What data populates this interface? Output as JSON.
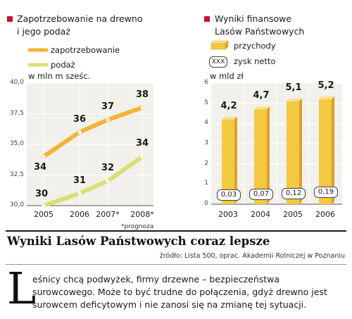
{
  "left_chart": {
    "title_line1": "Zapotrzebowanie na drewno",
    "title_line2": "i jego podaż",
    "legend": [
      {
        "label": "zapotrzebowanie",
        "color": "#f5b335"
      },
      {
        "label": "podaż",
        "color": "#d9df74"
      }
    ],
    "unit": "w mln m sześc.",
    "footnote": "*prognoza"
  },
  "right_chart": {
    "title_line1": "Wyniki finansowe",
    "title_line2": "Lasów Państwowych",
    "legend_revenue": "przychody",
    "legend_profit": "zysk netto",
    "legend_profit_box": "XXX",
    "unit": "w mld zł"
  },
  "headline": "Wyniki Lasów Państwowych coraz lepsze",
  "source": "źródło: Lista 500, oprac. Akademii Rolniczej w Poznaniu",
  "body": {
    "dropcap": "L",
    "line1": "eśnicy chcą podwyżek, firmy drzewne – bezpieczeństwa",
    "line2": "surowcowego. Może to być trudne do połączenia, gdyż drewno jest",
    "line3": "surowcem deficytowym i nie zanosi się na zmianę tej sytuacji."
  },
  "colors": {
    "accent": "#c8102e",
    "panel": "#f2f0eb"
  },
  "chart_data": [
    {
      "type": "line",
      "categories": [
        "2005",
        "2006",
        "2007*",
        "2008*"
      ],
      "series": [
        {
          "name": "zapotrzebowanie",
          "values": [
            34,
            36,
            37,
            38
          ],
          "color": "#f5b335"
        },
        {
          "name": "podaż",
          "values": [
            30,
            31,
            32,
            34
          ],
          "color": "#d9df74"
        }
      ],
      "ylabel": "w mln m sześc.",
      "ylim": [
        30,
        40
      ],
      "yticks": [
        "30,0",
        "32,5",
        "35,0",
        "37,5",
        "40,0"
      ],
      "tick_values": [
        30,
        32.5,
        35,
        37.5,
        40
      ],
      "grid": true
    },
    {
      "type": "bar",
      "categories": [
        "2003",
        "2004",
        "2005",
        "2006"
      ],
      "series": [
        {
          "name": "przychody",
          "values": [
            4.2,
            4.7,
            5.1,
            5.2
          ],
          "labels": [
            "4,2",
            "4,7",
            "5,1",
            "5,2"
          ],
          "color": "#f5c842"
        },
        {
          "name": "zysk netto",
          "values": [
            0.03,
            0.07,
            0.12,
            0.19
          ],
          "labels": [
            "0,03",
            "0,07",
            "0,12",
            "0,19"
          ]
        }
      ],
      "ylabel": "w mld zł",
      "ylim": [
        0,
        6
      ],
      "yticks": [
        "0",
        "1",
        "2",
        "3",
        "4",
        "5",
        "6"
      ],
      "grid": true
    }
  ]
}
